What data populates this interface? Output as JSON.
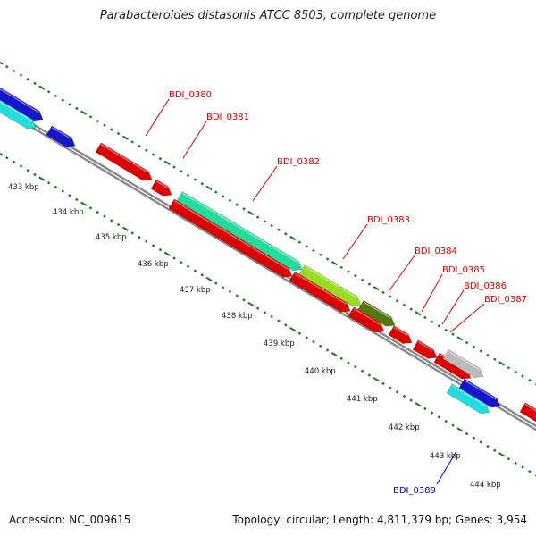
{
  "title": "Parabacteroides distasonis ATCC 8503, complete genome",
  "footer": {
    "accession": "Accession: NC_009615",
    "topology": "Topology: circular; Length: 4,811,379 bp; Genes: 3,954"
  },
  "colors": {
    "backbone": "#888888",
    "tick": "#1a7a1a",
    "label_red": "#cc0000",
    "label_blue": "#0000aa"
  },
  "ticks": [
    "433 kbp",
    "434 kbp",
    "435 kbp",
    "436 kbp",
    "437 kbp",
    "438 kbp",
    "439 kbp",
    "440 kbp",
    "441 kbp",
    "442 kbp",
    "443 kbp",
    "444 kbp"
  ],
  "features": [
    {
      "label": "BDI_0380",
      "color": "#dd0000"
    },
    {
      "label": "BDI_0381",
      "color": "#dd0000"
    },
    {
      "label": "BDI_0382",
      "color": "#22dd99"
    },
    {
      "label": "BDI_0383",
      "color": "#99dd22"
    },
    {
      "label": "BDI_0384",
      "color": "#557711"
    },
    {
      "label": "BDI_0385",
      "color": "#dd0000"
    },
    {
      "label": "BDI_0386",
      "color": "#dd0000"
    },
    {
      "label": "BDI_0387",
      "color": "#bbbbbb"
    },
    {
      "label": "BDI_0389",
      "color": "#22dddd"
    }
  ]
}
